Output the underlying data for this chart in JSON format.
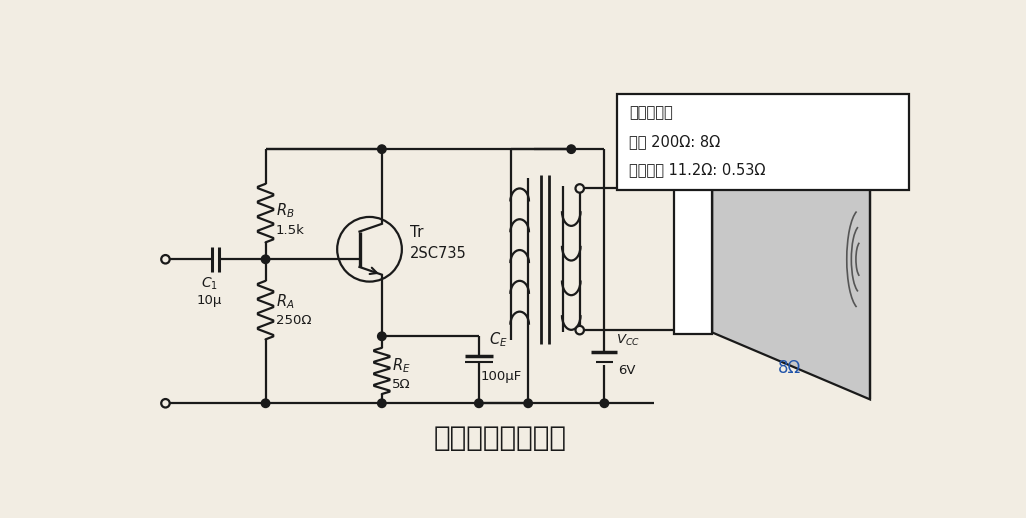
{
  "title": "甲类功率放大电路",
  "title_fontsize": 20,
  "bg_color": "#f2ede3",
  "line_color": "#1a1a1a",
  "box_text_line1": "输出变压器",
  "box_text_line2": "阻抗 200Ω: 8Ω",
  "box_text_line3": "直流电阻 11.2Ω: 0.53Ω",
  "label_RB": "$R_B$",
  "val_RB": "1.5k",
  "label_RA": "$R_A$",
  "val_RA": "250Ω",
  "label_RE": "$R_E$",
  "val_RE": "5Ω",
  "label_CE": "$C_E$",
  "val_CE": "100μF",
  "label_C1": "$C_1$",
  "val_C1": "10μ",
  "label_VCC": "$V_{CC}$",
  "val_VCC": "6V",
  "label_TR_name": "Tr",
  "label_TR_model": "2SC735",
  "label_speaker": "8Ω",
  "speaker_color": "#2255aa"
}
